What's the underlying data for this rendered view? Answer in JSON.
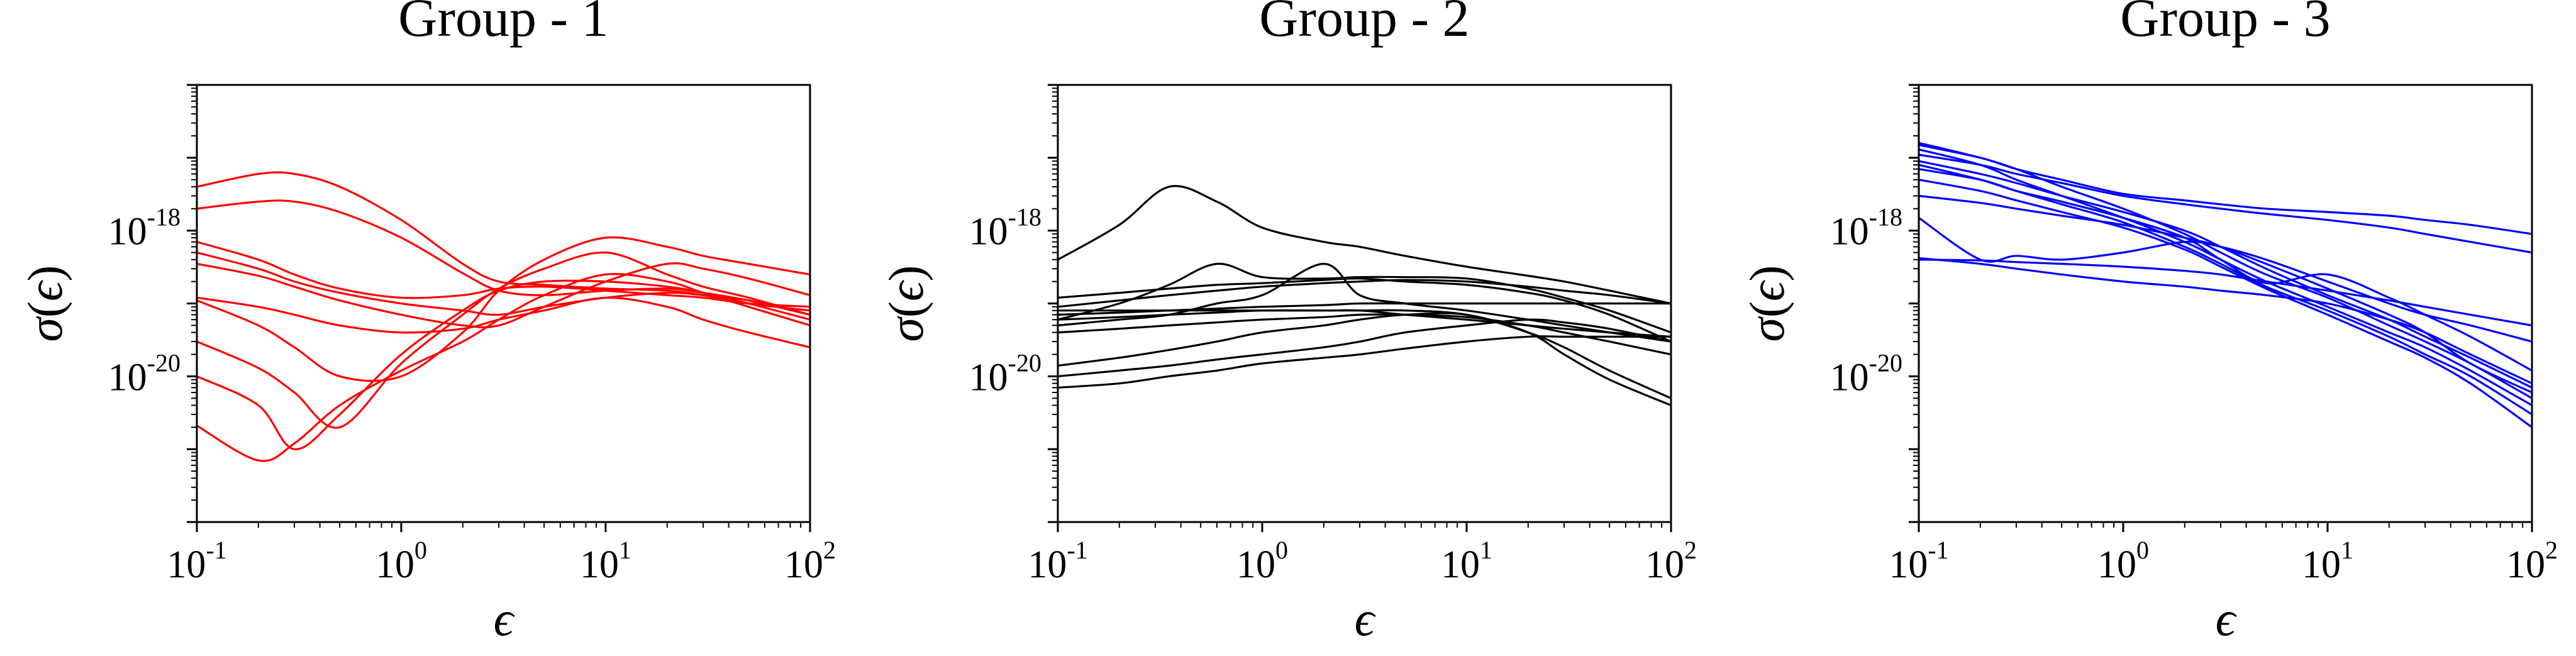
{
  "chart_data": [
    {
      "type": "line",
      "title": "Group - 1",
      "color": "#ff0000",
      "xlabel": "ϵ",
      "ylabel": "σ(ϵ)",
      "xscale": "log",
      "yscale": "log",
      "xlim": [
        0.1,
        100
      ],
      "ylim": [
        1e-22,
        1e-16
      ],
      "xticks": [
        {
          "base": "10",
          "exp": "-1"
        },
        {
          "base": "10",
          "exp": "0"
        },
        {
          "base": "10",
          "exp": "1"
        },
        {
          "base": "10",
          "exp": "2"
        }
      ],
      "yticks": [
        {
          "value": 1e-20,
          "base": "10",
          "exp": "-20"
        },
        {
          "value": 1e-18,
          "base": "10",
          "exp": "-18"
        }
      ],
      "x": [
        0.1,
        0.2,
        0.3,
        0.5,
        1,
        2,
        3,
        5,
        10,
        20,
        30,
        50,
        100
      ],
      "series": [
        {
          "values": [
            2.1e-21,
            7e-22,
            1.2e-21,
            4e-21,
            1.2e-20,
            3e-20,
            6e-20,
            1.3e-19,
            2.5e-19,
            2e-19,
            1.4e-19,
            9e-20,
            5e-20
          ]
        },
        {
          "values": [
            1e-20,
            4e-21,
            1e-21,
            3e-21,
            2e-20,
            8e-20,
            1.5e-19,
            2e-19,
            2e-19,
            1.7e-19,
            1.4e-19,
            1e-19,
            6e-20
          ]
        },
        {
          "values": [
            3e-20,
            1.3e-20,
            6e-21,
            2e-21,
            1.5e-20,
            7e-20,
            1.6e-19,
            3e-19,
            5e-19,
            2.5e-19,
            1.7e-19,
            1.2e-19,
            7e-20
          ]
        },
        {
          "values": [
            4e-18,
            6e-18,
            6e-18,
            4e-18,
            1.4e-18,
            3.5e-19,
            2e-19,
            1.8e-19,
            1.6e-19,
            1.5e-19,
            1.3e-19,
            1e-19,
            8e-20
          ]
        },
        {
          "values": [
            2e-18,
            2.5e-18,
            2.5e-18,
            1.8e-18,
            8e-19,
            2.6e-19,
            1.5e-19,
            1.3e-19,
            1.5e-19,
            1.6e-19,
            1.4e-19,
            1.1e-19,
            7e-20
          ]
        },
        {
          "values": [
            7e-19,
            4e-19,
            2.5e-19,
            1.6e-19,
            1.2e-19,
            1.3e-19,
            1.6e-19,
            1.7e-19,
            1.5e-19,
            1.3e-19,
            1.2e-19,
            1e-19,
            9e-20
          ]
        },
        {
          "values": [
            5e-19,
            3e-19,
            2e-19,
            1.4e-19,
            1e-19,
            8e-20,
            7e-20,
            9e-20,
            1.2e-19,
            1.4e-19,
            1.3e-19,
            1.1e-19,
            7e-20
          ]
        },
        {
          "values": [
            3.5e-19,
            2.4e-19,
            1.7e-19,
            1.1e-19,
            7e-20,
            5e-20,
            5e-20,
            9e-20,
            2e-19,
            3.5e-19,
            3e-19,
            2.2e-19,
            1.3e-19
          ]
        },
        {
          "values": [
            1.1e-19,
            5e-20,
            2.5e-20,
            1e-20,
            1e-20,
            4e-20,
            1.5e-19,
            4e-19,
            8e-19,
            6e-19,
            4.5e-19,
            3.5e-19,
            2.5e-19
          ]
        },
        {
          "values": [
            1.2e-19,
            9e-20,
            7e-20,
            5e-20,
            4e-20,
            4.5e-20,
            6e-20,
            8e-20,
            1.2e-19,
            9e-20,
            6e-20,
            4e-20,
            2.5e-20
          ]
        }
      ]
    },
    {
      "type": "line",
      "title": "Group - 2",
      "color": "#000000",
      "xlabel": "ϵ",
      "ylabel": "σ(ϵ)",
      "xscale": "log",
      "yscale": "log",
      "xlim": [
        0.1,
        100
      ],
      "ylim": [
        1e-22,
        1e-16
      ],
      "xticks": [
        {
          "base": "10",
          "exp": "-1"
        },
        {
          "base": "10",
          "exp": "0"
        },
        {
          "base": "10",
          "exp": "1"
        },
        {
          "base": "10",
          "exp": "2"
        }
      ],
      "yticks": [
        {
          "value": 1e-20,
          "base": "10",
          "exp": "-20"
        },
        {
          "value": 1e-18,
          "base": "10",
          "exp": "-18"
        }
      ],
      "x": [
        0.1,
        0.2,
        0.35,
        0.6,
        1,
        2,
        3,
        5,
        10,
        20,
        30,
        50,
        100
      ],
      "series": [
        {
          "values": [
            4e-19,
            1.2e-18,
            4e-18,
            2.5e-18,
            1.1e-18,
            7e-19,
            6e-19,
            4.5e-19,
            3.2e-19,
            2.4e-19,
            2e-19,
            1.5e-19,
            1e-19
          ]
        },
        {
          "values": [
            6e-20,
            1e-19,
            1.8e-19,
            3.5e-19,
            2.3e-19,
            2.2e-19,
            2.3e-19,
            2.3e-19,
            2.2e-19,
            1.6e-19,
            1.2e-19,
            8e-20,
            4e-20
          ]
        },
        {
          "values": [
            1.2e-19,
            1.4e-19,
            1.6e-19,
            1.8e-19,
            1.9e-19,
            2.1e-19,
            2.2e-19,
            2e-19,
            1.8e-19,
            1.4e-19,
            1.1e-19,
            7e-20,
            3e-20
          ]
        },
        {
          "values": [
            9e-20,
            1.1e-19,
            1.3e-19,
            1.5e-19,
            1.7e-19,
            1.9e-19,
            2e-19,
            2.1e-19,
            2e-19,
            1.7e-19,
            1.5e-19,
            1.3e-19,
            1e-19
          ]
        },
        {
          "values": [
            7e-20,
            7.5e-20,
            8e-20,
            8.5e-20,
            9e-20,
            9.5e-20,
            1e-19,
            1e-19,
            1e-19,
            1e-19,
            1e-19,
            1e-19,
            1e-19
          ]
        },
        {
          "values": [
            5e-20,
            6e-20,
            7e-20,
            1e-19,
            1.3e-19,
            3.5e-19,
            1.3e-19,
            1e-19,
            8e-20,
            6e-20,
            5e-20,
            4e-20,
            3e-20
          ]
        },
        {
          "values": [
            8e-20,
            8e-20,
            8e-20,
            8e-20,
            8e-20,
            8e-20,
            8e-20,
            8e-20,
            7e-20,
            4e-20,
            2.5e-20,
            1.2e-20,
            5e-21
          ]
        },
        {
          "values": [
            6e-20,
            6.5e-20,
            7e-20,
            7.5e-20,
            8e-20,
            8e-20,
            8e-20,
            7e-20,
            6e-20,
            5e-20,
            4.5e-20,
            4e-20,
            3.5e-20
          ]
        },
        {
          "values": [
            1e-20,
            1.2e-20,
            1.4e-20,
            1.7e-20,
            2e-20,
            2.5e-20,
            3e-20,
            4e-20,
            5e-20,
            6e-20,
            5.5e-20,
            4.5e-20,
            3e-20
          ]
        },
        {
          "values": [
            7e-21,
            8e-21,
            1e-20,
            1.2e-20,
            1.5e-20,
            1.8e-20,
            2e-20,
            2.4e-20,
            3e-20,
            3.5e-20,
            3.5e-20,
            3.5e-20,
            3.5e-20
          ]
        },
        {
          "values": [
            1.4e-20,
            1.8e-20,
            2.3e-20,
            3e-20,
            4e-20,
            5e-20,
            6e-20,
            7e-20,
            7e-20,
            4e-20,
            2e-20,
            9e-21,
            4e-21
          ]
        },
        {
          "values": [
            4e-20,
            4.5e-20,
            5e-20,
            5.5e-20,
            6e-20,
            6.5e-20,
            7e-20,
            7e-20,
            6.5e-20,
            5e-20,
            4e-20,
            3e-20,
            2e-20
          ]
        }
      ]
    },
    {
      "type": "line",
      "title": "Group - 3",
      "color": "#0000ff",
      "xlabel": "ϵ",
      "ylabel": "σ(ϵ)",
      "xscale": "log",
      "yscale": "log",
      "xlim": [
        0.1,
        100
      ],
      "ylim": [
        1e-22,
        1e-16
      ],
      "xticks": [
        {
          "base": "10",
          "exp": "-1"
        },
        {
          "base": "10",
          "exp": "0"
        },
        {
          "base": "10",
          "exp": "1"
        },
        {
          "base": "10",
          "exp": "2"
        }
      ],
      "yticks": [
        {
          "value": 1e-20,
          "base": "10",
          "exp": "-20"
        },
        {
          "value": 1e-18,
          "base": "10",
          "exp": "-18"
        }
      ],
      "x": [
        0.1,
        0.2,
        0.3,
        0.5,
        1,
        2,
        3,
        5,
        10,
        20,
        30,
        50,
        100
      ],
      "series": [
        {
          "values": [
            1.5e-17,
            1e-17,
            7e-18,
            5e-18,
            3.2e-18,
            2.6e-18,
            2.3e-18,
            2e-18,
            1.8e-18,
            1.6e-18,
            1.4e-18,
            1.2e-18,
            9e-19
          ]
        },
        {
          "values": [
            1.1e-17,
            8e-18,
            6e-18,
            4.5e-18,
            3e-18,
            2.3e-18,
            2e-18,
            1.7e-18,
            1.4e-18,
            1.1e-18,
            9e-19,
            7e-19,
            5e-19
          ]
        },
        {
          "values": [
            1.6e-17,
            1e-17,
            7e-18,
            4e-18,
            2e-18,
            9e-19,
            5e-19,
            2.5e-19,
            1.2e-19,
            5e-20,
            3e-20,
            1.5e-20,
            5e-21
          ]
        },
        {
          "values": [
            1.3e-17,
            8e-18,
            5e-18,
            3e-18,
            1.5e-18,
            7e-19,
            4e-19,
            2e-19,
            9e-20,
            4e-20,
            2.5e-20,
            1.2e-20,
            4e-21
          ]
        },
        {
          "values": [
            9e-18,
            6e-18,
            4.5e-18,
            3e-18,
            1.8e-18,
            1e-18,
            6e-19,
            3e-19,
            1.3e-19,
            6e-20,
            3.5e-20,
            1.8e-20,
            7e-21
          ]
        },
        {
          "values": [
            7e-18,
            5e-18,
            3.5e-18,
            2.3e-18,
            1.3e-18,
            6e-19,
            3.5e-19,
            1.7e-19,
            8e-20,
            3.5e-20,
            2e-20,
            1e-20,
            3e-21
          ]
        },
        {
          "values": [
            5e-18,
            3.5e-18,
            2.6e-18,
            1.8e-18,
            1.1e-18,
            5.5e-19,
            3.2e-19,
            1.6e-19,
            7e-20,
            3e-20,
            1.8e-20,
            8e-21,
            2e-21
          ]
        },
        {
          "values": [
            3e-18,
            2.4e-18,
            2e-18,
            1.6e-18,
            1.2e-18,
            8e-19,
            6e-19,
            3.5e-19,
            1.6e-19,
            7e-20,
            4e-20,
            1.5e-20,
            6e-21
          ]
        },
        {
          "values": [
            1.5e-18,
            4e-19,
            4.5e-19,
            4e-19,
            5e-19,
            7e-19,
            6e-19,
            4e-19,
            2e-19,
            1e-19,
            7e-20,
            5e-20,
            3e-20
          ]
        },
        {
          "values": [
            4e-19,
            3.9e-19,
            3.7e-19,
            3.5e-19,
            3.2e-19,
            2.8e-19,
            2.5e-19,
            2e-19,
            1.5e-19,
            1.1e-19,
            9e-20,
            7e-20,
            5e-20
          ]
        },
        {
          "values": [
            4.2e-19,
            3.5e-19,
            3e-19,
            2.5e-19,
            2e-19,
            1.7e-19,
            1.5e-19,
            1.3e-19,
            1e-19,
            6e-20,
            4e-20,
            2e-20,
            8e-21
          ]
        },
        {
          "values": [
            8e-18,
            5e-18,
            3.5e-18,
            2.5e-18,
            1.5e-18,
            8e-19,
            4e-19,
            1.9e-19,
            2.5e-19,
            1.2e-19,
            7e-20,
            3.5e-20,
            1.2e-20
          ]
        }
      ]
    }
  ]
}
